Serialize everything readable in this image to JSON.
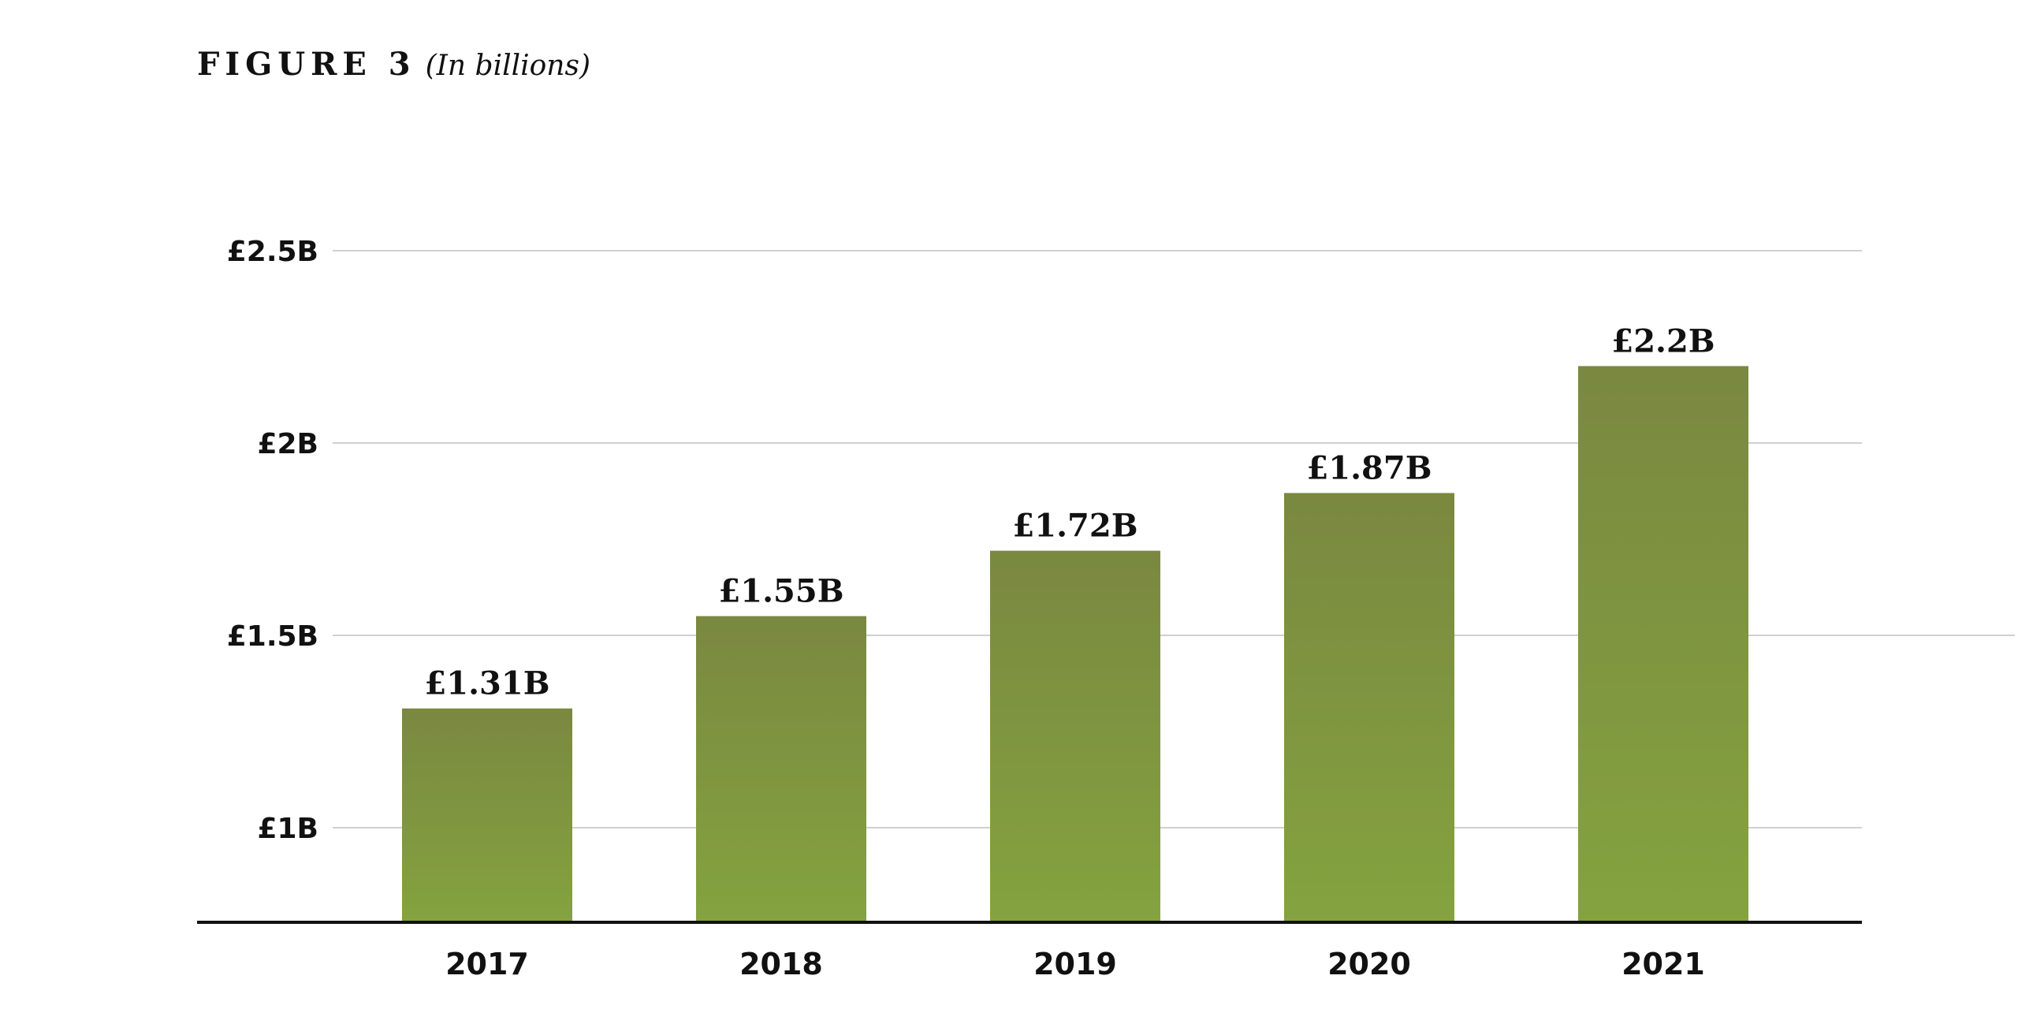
{
  "header": {
    "title": "FIGURE 3",
    "subtitle": "(In billions)"
  },
  "chart_data": {
    "type": "bar",
    "title": "FIGURE 3",
    "subtitle": "(In billions)",
    "categories": [
      "2017",
      "2018",
      "2019",
      "2020",
      "2021"
    ],
    "values": [
      1.31,
      1.55,
      1.72,
      1.87,
      2.2
    ],
    "data_labels": [
      "£1.31B",
      "£1.55B",
      "£1.72B",
      "£1.87B",
      "£2.2B"
    ],
    "y_ticks": [
      1,
      1.5,
      2,
      2.5
    ],
    "y_tick_labels": [
      "£1B",
      "£1.5B",
      "£2B",
      "£2.5B"
    ],
    "xlabel": "",
    "ylabel": "",
    "grid": true,
    "legend": "none",
    "bar_color_top": "#7a8840",
    "bar_color_bottom": "#84a33f"
  }
}
